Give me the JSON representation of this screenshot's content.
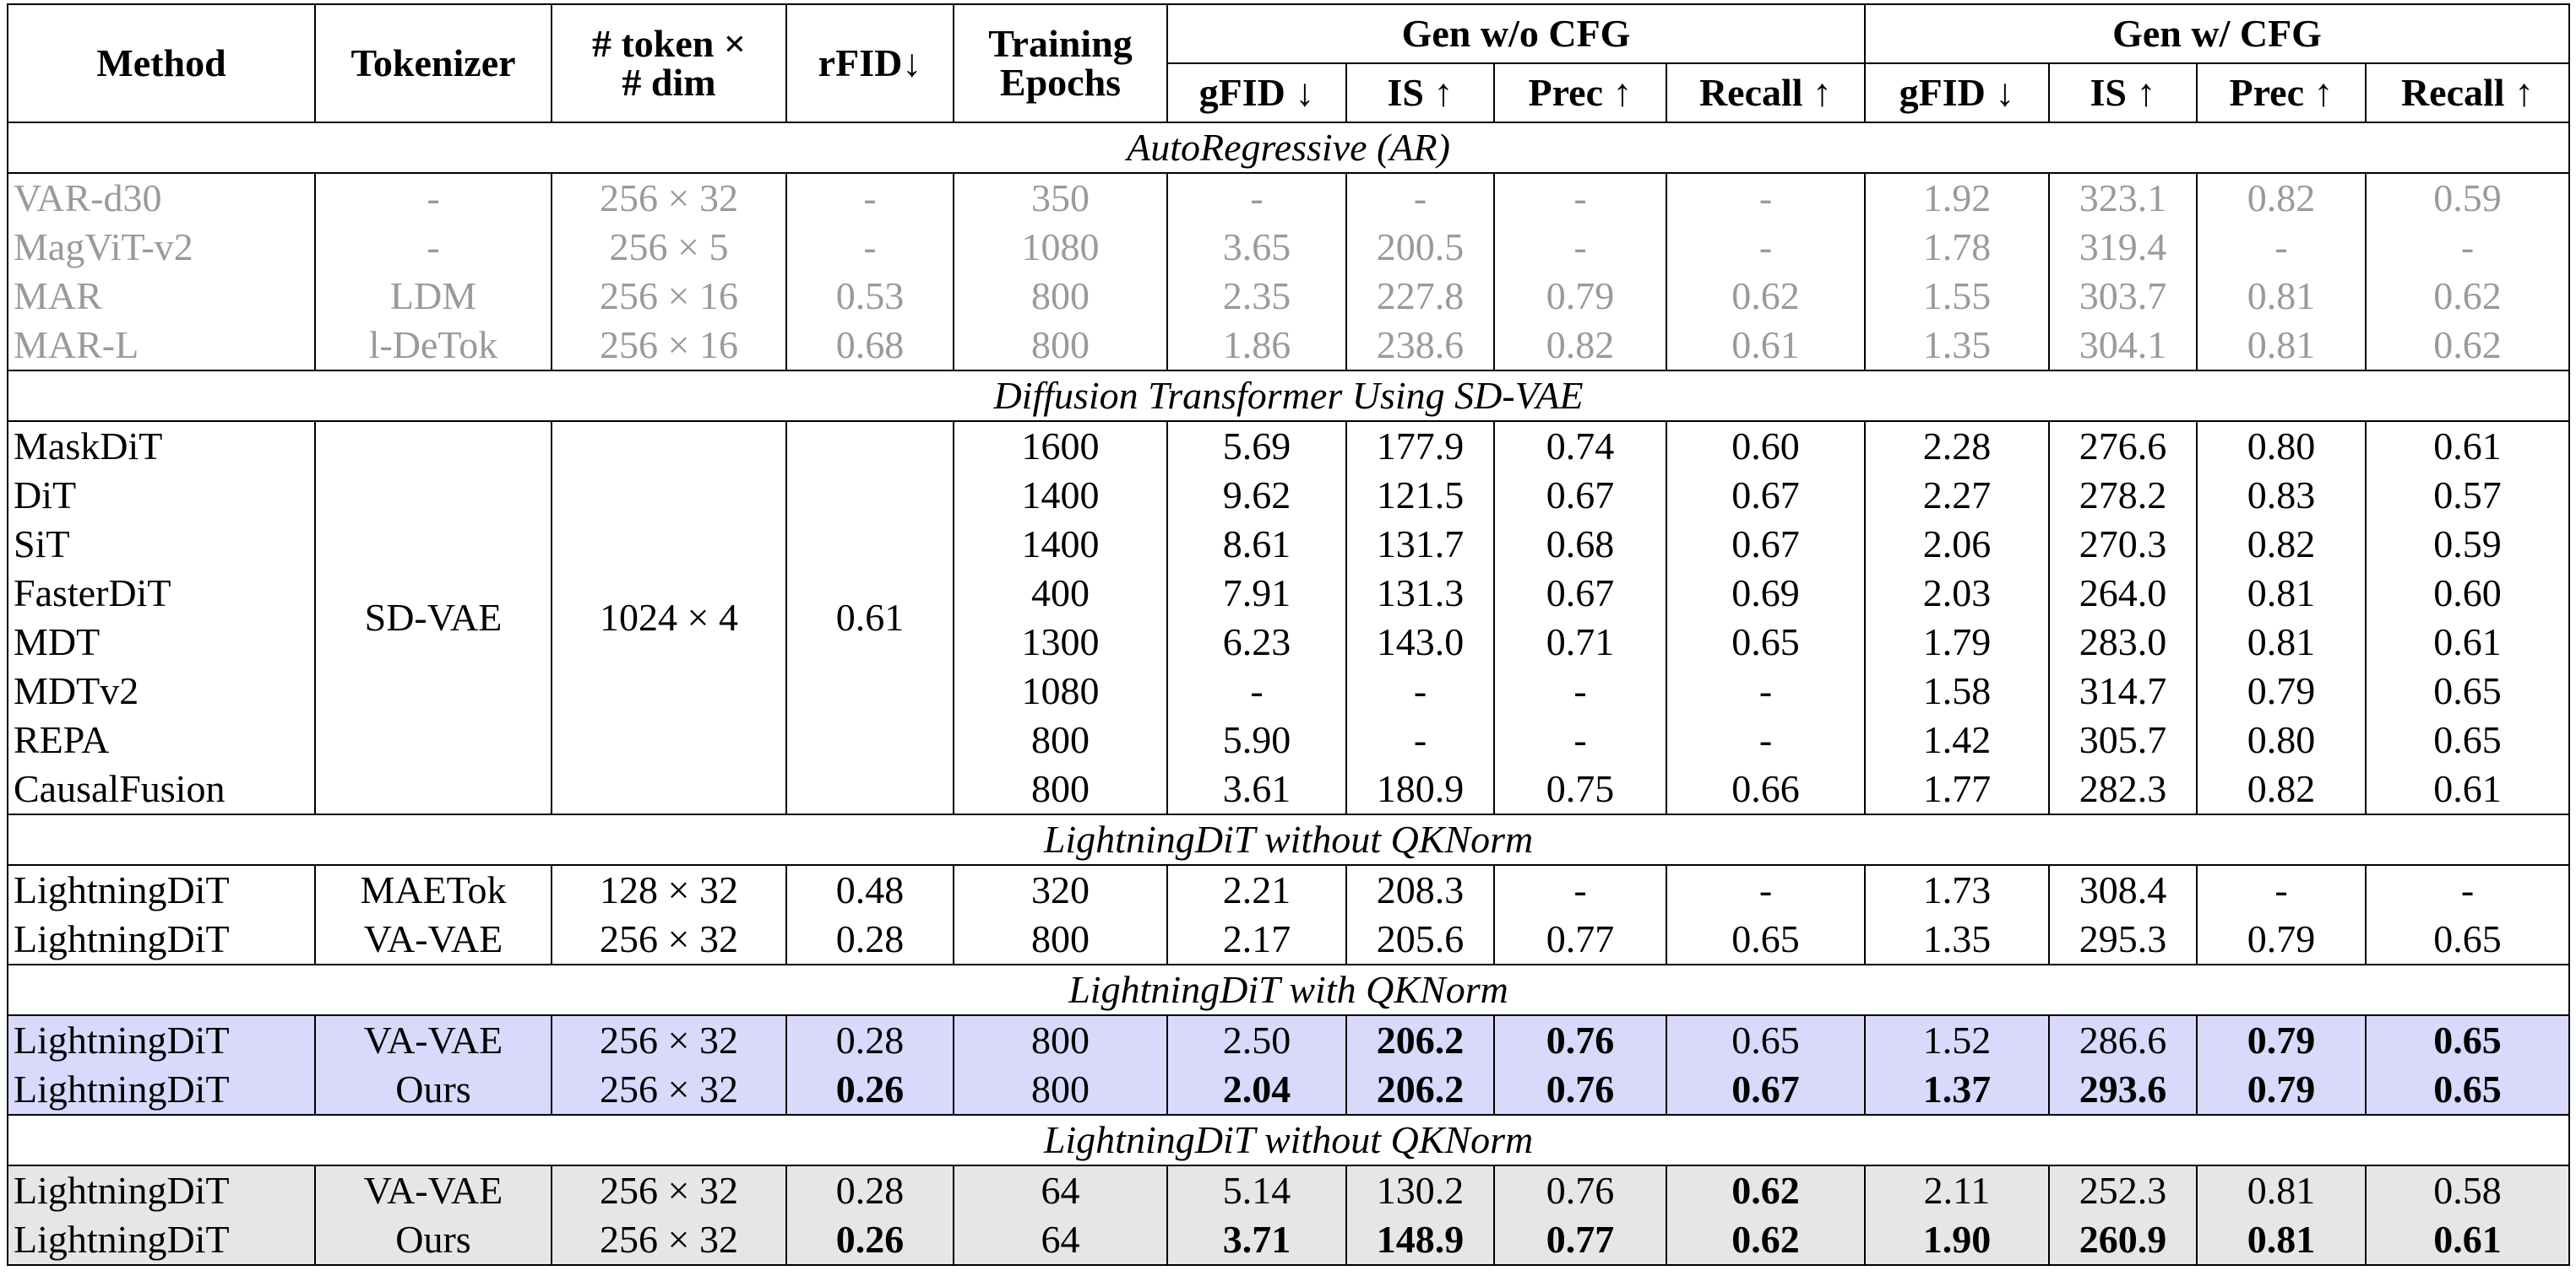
{
  "table": {
    "header": {
      "columns": [
        {
          "label": "Method"
        },
        {
          "label": "Tokenizer"
        },
        {
          "lines": [
            "# token ×",
            "# dim"
          ]
        },
        {
          "label": "rFID↓"
        },
        {
          "lines": [
            "Training",
            "Epochs"
          ]
        }
      ],
      "groups": [
        {
          "label": "Gen w/o CFG",
          "columns": [
            "gFID ↓",
            "IS ↑",
            "Prec ↑",
            "Recall ↑"
          ]
        },
        {
          "label": "Gen w/ CFG",
          "columns": [
            "gFID ↓",
            "IS ↑",
            "Prec ↑",
            "Recall ↑"
          ]
        }
      ]
    },
    "sections": [
      {
        "title": "AutoRegressive (AR)",
        "text_color": "#9a9a9a",
        "rows": [
          {
            "cells": [
              "VAR-d30",
              "-",
              "256 × 32",
              "-",
              "350",
              "-",
              "-",
              "-",
              "-",
              "1.92",
              "323.1",
              "0.82",
              "0.59"
            ]
          },
          {
            "cells": [
              "MagViT-v2",
              "-",
              "256 × 5",
              "-",
              "1080",
              "3.65",
              "200.5",
              "-",
              "-",
              "1.78",
              "319.4",
              "-",
              "-"
            ]
          },
          {
            "cells": [
              "MAR",
              "LDM",
              "256 × 16",
              "0.53",
              "800",
              "2.35",
              "227.8",
              "0.79",
              "0.62",
              "1.55",
              "303.7",
              "0.81",
              "0.62"
            ]
          },
          {
            "cells": [
              "MAR-L",
              "l-DeTok",
              "256 × 16",
              "0.68",
              "800",
              "1.86",
              "238.6",
              "0.82",
              "0.61",
              "1.35",
              "304.1",
              "0.81",
              "0.62"
            ]
          }
        ]
      },
      {
        "title": "Diffusion Transformer Using SD-VAE",
        "shared": [
          "SD-VAE",
          "1024 × 4",
          "0.61"
        ],
        "rows": [
          {
            "cells": [
              "MaskDiT",
              "1600",
              "5.69",
              "177.9",
              "0.74",
              "0.60",
              "2.28",
              "276.6",
              "0.80",
              "0.61"
            ]
          },
          {
            "cells": [
              "DiT",
              "1400",
              "9.62",
              "121.5",
              "0.67",
              "0.67",
              "2.27",
              "278.2",
              "0.83",
              "0.57"
            ]
          },
          {
            "cells": [
              "SiT",
              "1400",
              "8.61",
              "131.7",
              "0.68",
              "0.67",
              "2.06",
              "270.3",
              "0.82",
              "0.59"
            ]
          },
          {
            "cells": [
              "FasterDiT",
              "400",
              "7.91",
              "131.3",
              "0.67",
              "0.69",
              "2.03",
              "264.0",
              "0.81",
              "0.60"
            ]
          },
          {
            "cells": [
              "MDT",
              "1300",
              "6.23",
              "143.0",
              "0.71",
              "0.65",
              "1.79",
              "283.0",
              "0.81",
              "0.61"
            ]
          },
          {
            "cells": [
              "MDTv2",
              "1080",
              "-",
              "-",
              "-",
              "-",
              "1.58",
              "314.7",
              "0.79",
              "0.65"
            ]
          },
          {
            "cells": [
              "REPA",
              "800",
              "5.90",
              "-",
              "-",
              "-",
              "1.42",
              "305.7",
              "0.80",
              "0.65"
            ]
          },
          {
            "cells": [
              "CausalFusion",
              "800",
              "3.61",
              "180.9",
              "0.75",
              "0.66",
              "1.77",
              "282.3",
              "0.82",
              "0.61"
            ]
          }
        ]
      },
      {
        "title": "LightningDiT without QKNorm",
        "rows": [
          {
            "cells": [
              "LightningDiT",
              "MAETok",
              "128 × 32",
              "0.48",
              "320",
              "2.21",
              "208.3",
              "-",
              "-",
              "1.73",
              "308.4",
              "-",
              "-"
            ]
          },
          {
            "cells": [
              "LightningDiT",
              "VA-VAE",
              "256 × 32",
              "0.28",
              "800",
              "2.17",
              "205.6",
              "0.77",
              "0.65",
              "1.35",
              "295.3",
              "0.79",
              "0.65"
            ]
          }
        ]
      },
      {
        "title": "LightningDiT with QKNorm",
        "background": "#d9d9fb",
        "rows": [
          {
            "cells": [
              "LightningDiT",
              "VA-VAE",
              "256 × 32",
              "0.28",
              "800",
              "2.50",
              "206.2",
              "0.76",
              "0.65",
              "1.52",
              "286.6",
              "0.79",
              "0.65"
            ],
            "bold": [
              6,
              7,
              11,
              12
            ]
          },
          {
            "cells": [
              "LightningDiT",
              "Ours",
              "256 × 32",
              "0.26",
              "800",
              "2.04",
              "206.2",
              "0.76",
              "0.67",
              "1.37",
              "293.6",
              "0.79",
              "0.65"
            ],
            "bold": [
              3,
              5,
              6,
              7,
              8,
              9,
              10,
              11,
              12
            ]
          }
        ]
      },
      {
        "title": "LightningDiT without QKNorm",
        "background": "#e6e6e6",
        "rows": [
          {
            "cells": [
              "LightningDiT",
              "VA-VAE",
              "256 × 32",
              "0.28",
              "64",
              "5.14",
              "130.2",
              "0.76",
              "0.62",
              "2.11",
              "252.3",
              "0.81",
              "0.58"
            ],
            "bold": [
              8
            ]
          },
          {
            "cells": [
              "LightningDiT",
              "Ours",
              "256 × 32",
              "0.26",
              "64",
              "3.71",
              "148.9",
              "0.77",
              "0.62",
              "1.90",
              "260.9",
              "0.81",
              "0.61"
            ],
            "bold": [
              3,
              5,
              6,
              7,
              8,
              9,
              10,
              11,
              12
            ]
          }
        ]
      }
    ]
  }
}
